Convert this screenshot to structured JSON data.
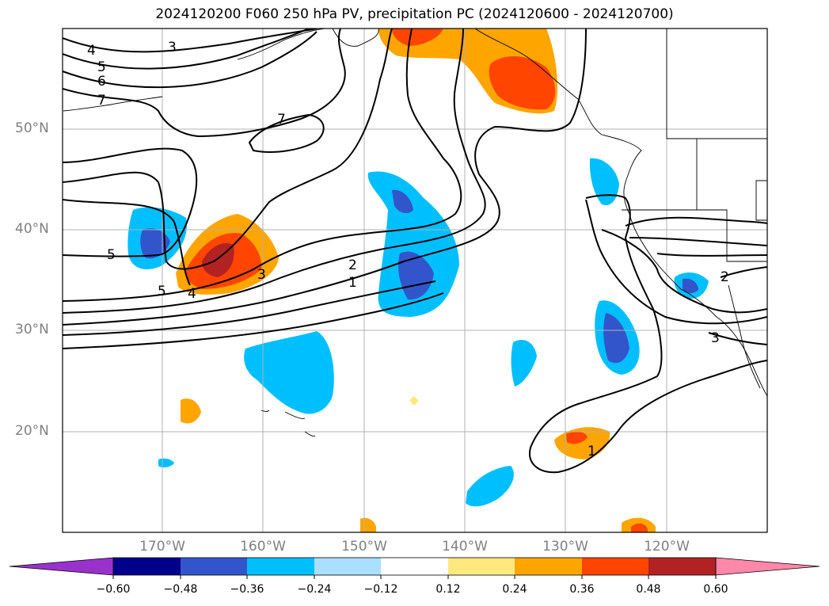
{
  "title": "2024120200 F060 250 hPa PV, precipitation PC (2024120600 - 2024120700)",
  "lat_labels": [
    "50°N",
    "40°N",
    "30°N",
    "20°N"
  ],
  "lon_labels": [
    "170°W",
    "160°W",
    "150°W",
    "140°W",
    "130°W",
    "120°W"
  ],
  "colorbar": {
    "ticks": [
      "−0.60",
      "−0.48",
      "−0.36",
      "−0.24",
      "−0.12",
      "0.12",
      "0.24",
      "0.36",
      "0.48",
      "0.60"
    ],
    "colors": {
      "under": "#9932cc",
      "b1": "#00008b",
      "b2": "#3355cc",
      "b3": "#00bfff",
      "b4": "#aadfff",
      "b5": "#ffffff",
      "b6": "#ffe97f",
      "b7": "#ffa500",
      "b8": "#ff4500",
      "b9": "#b22222",
      "over": "#ff88aa"
    }
  },
  "contour_labels": [
    "4",
    "5",
    "6",
    "7",
    "3",
    "7",
    "5",
    "5",
    "4",
    "3",
    "2",
    "1",
    "3",
    "2",
    "1"
  ]
}
